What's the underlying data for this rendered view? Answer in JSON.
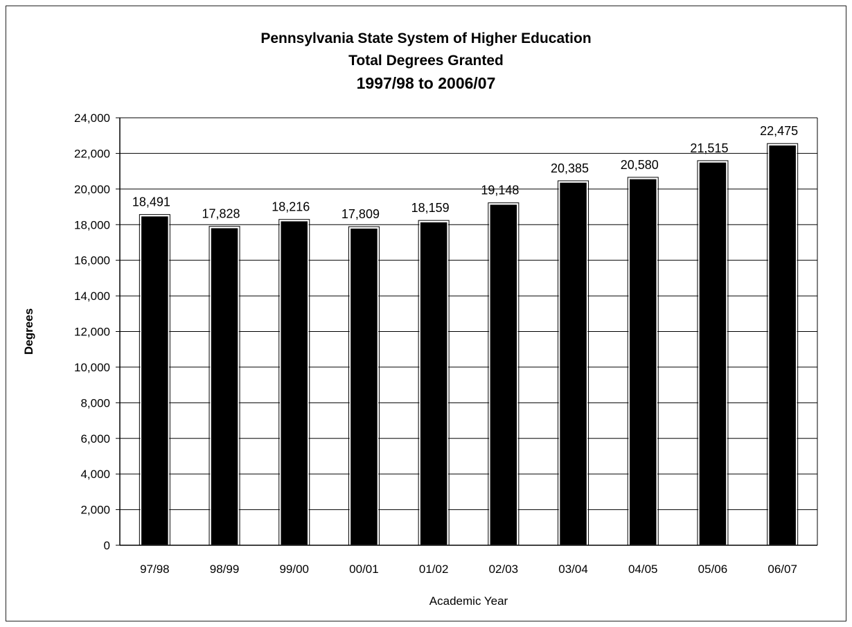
{
  "chart_data": {
    "type": "bar",
    "title": "Pennsylvania State System of Higher Education",
    "subtitle": "Total Degrees Granted",
    "subtitle2": "1997/98 to 2006/07",
    "xlabel": "Academic Year",
    "ylabel": "Degrees",
    "ylim": [
      0,
      24000
    ],
    "yticks": [
      0,
      2000,
      4000,
      6000,
      8000,
      10000,
      12000,
      14000,
      16000,
      18000,
      20000,
      22000,
      24000
    ],
    "ytick_labels": [
      "0",
      "2,000",
      "4,000",
      "6,000",
      "8,000",
      "10,000",
      "12,000",
      "14,000",
      "16,000",
      "18,000",
      "20,000",
      "22,000",
      "24,000"
    ],
    "categories": [
      "97/98",
      "98/99",
      "99/00",
      "00/01",
      "01/02",
      "02/03",
      "03/04",
      "04/05",
      "05/06",
      "06/07"
    ],
    "values": [
      18491,
      17828,
      18216,
      17809,
      18159,
      19148,
      20385,
      20580,
      21515,
      22475
    ],
    "value_labels": [
      "18,491",
      "17,828",
      "18,216",
      "17,809",
      "18,159",
      "19,148",
      "20,385",
      "20,580",
      "21,515",
      "22,475"
    ],
    "grid": true,
    "bar_color": "#000000"
  }
}
